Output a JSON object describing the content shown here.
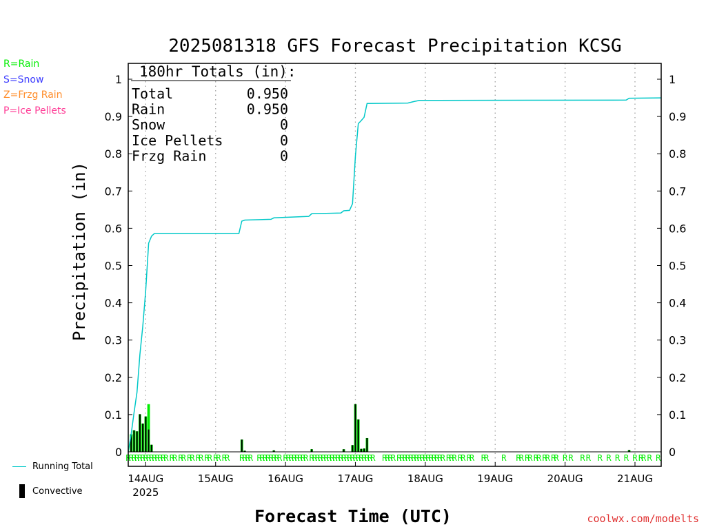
{
  "colors": {
    "rain": "#00ee00",
    "snow": "#3c3cff",
    "frzg_rain": "#ff8c28",
    "ice_pellets": "#ff3c96",
    "running_total": "#00c8c8",
    "convective": "#000000",
    "credit": "#e03030"
  },
  "ptype_legend": [
    {
      "text": "R=Rain",
      "color": "#00ee00"
    },
    {
      "text": "S=Snow",
      "color": "#3c3cff"
    },
    {
      "text": "Z=Frzg Rain",
      "color": "#ff8c28"
    },
    {
      "text": "P=Ice Pellets",
      "color": "#ff3c96"
    }
  ],
  "side_legend": {
    "running_total": "Running Total",
    "convective": "Convective"
  },
  "credit": "coolwx.com/modelts",
  "chart_data": {
    "type": "bar",
    "title": "2025081318 GFS Forecast Precipitation KCSG",
    "xlabel": "Forecast Time (UTC)",
    "ylabel": "Precipitation (in)",
    "ylim": [
      0,
      1.04
    ],
    "yticks": [
      0,
      0.1,
      0.2,
      0.3,
      0.4,
      0.5,
      0.6,
      0.7,
      0.8,
      0.9,
      1
    ],
    "xlim_hours": [
      0,
      183
    ],
    "date_ticks": [
      {
        "hour": 6,
        "label": "14AUG",
        "sub": "2025"
      },
      {
        "hour": 30,
        "label": "15AUG"
      },
      {
        "hour": 54,
        "label": "16AUG"
      },
      {
        "hour": 78,
        "label": "17AUG"
      },
      {
        "hour": 102,
        "label": "18AUG"
      },
      {
        "hour": 126,
        "label": "19AUG"
      },
      {
        "hour": 150,
        "label": "20AUG"
      },
      {
        "hour": 174,
        "label": "21AUG"
      }
    ],
    "grid": "vertical dotted at date ticks",
    "totals_box": {
      "header": "180hr Totals (in):",
      "rows": [
        {
          "label": "Total",
          "value": "0.950"
        },
        {
          "label": "Rain",
          "value": "0.950"
        },
        {
          "label": "Snow",
          "value": "0"
        },
        {
          "label": "Ice Pellets",
          "value": "0"
        },
        {
          "label": "Frzg Rain",
          "value": "0"
        }
      ]
    },
    "bars": [
      {
        "hour": 1,
        "total": 0.047,
        "convective": 0.047
      },
      {
        "hour": 2,
        "total": 0.058,
        "convective": 0.058
      },
      {
        "hour": 3,
        "total": 0.055,
        "convective": 0.055
      },
      {
        "hour": 4,
        "total": 0.101,
        "convective": 0.101
      },
      {
        "hour": 5,
        "total": 0.076,
        "convective": 0.076
      },
      {
        "hour": 6,
        "total": 0.095,
        "convective": 0.095
      },
      {
        "hour": 7,
        "total": 0.128,
        "convective": 0.06
      },
      {
        "hour": 8,
        "total": 0.019,
        "convective": 0.019
      },
      {
        "hour": 39,
        "total": 0.033,
        "convective": 0.033
      },
      {
        "hour": 40,
        "total": 0.003,
        "convective": 0.003
      },
      {
        "hour": 50,
        "total": 0.004,
        "convective": 0.004
      },
      {
        "hour": 63,
        "total": 0.007,
        "convective": 0.007
      },
      {
        "hour": 74,
        "total": 0.007,
        "convective": 0.007
      },
      {
        "hour": 77,
        "total": 0.018,
        "convective": 0.018
      },
      {
        "hour": 78,
        "total": 0.128,
        "convective": 0.128
      },
      {
        "hour": 79,
        "total": 0.087,
        "convective": 0.087
      },
      {
        "hour": 80,
        "total": 0.008,
        "convective": 0.008
      },
      {
        "hour": 81,
        "total": 0.009,
        "convective": 0.009
      },
      {
        "hour": 82,
        "total": 0.037,
        "convective": 0.037
      },
      {
        "hour": 172,
        "total": 0.005,
        "convective": 0.005
      }
    ],
    "running_total": [
      [
        0,
        0
      ],
      [
        1,
        0.047
      ],
      [
        2,
        0.105
      ],
      [
        3,
        0.16
      ],
      [
        4,
        0.261
      ],
      [
        5,
        0.337
      ],
      [
        6,
        0.432
      ],
      [
        7,
        0.56
      ],
      [
        8,
        0.579
      ],
      [
        9,
        0.586
      ],
      [
        38,
        0.586
      ],
      [
        39,
        0.619
      ],
      [
        40,
        0.622
      ],
      [
        49,
        0.624
      ],
      [
        50,
        0.628
      ],
      [
        62,
        0.632
      ],
      [
        63,
        0.639
      ],
      [
        73,
        0.641
      ],
      [
        74,
        0.647
      ],
      [
        76,
        0.648
      ],
      [
        77,
        0.666
      ],
      [
        78,
        0.794
      ],
      [
        79,
        0.881
      ],
      [
        80,
        0.889
      ],
      [
        81,
        0.898
      ],
      [
        82,
        0.935
      ],
      [
        96,
        0.936
      ],
      [
        98,
        0.94
      ],
      [
        100,
        0.943
      ],
      [
        171,
        0.944
      ],
      [
        172,
        0.949
      ],
      [
        183,
        0.95
      ]
    ],
    "ptype_hours": [
      0,
      1,
      2,
      3,
      4,
      5,
      6,
      7,
      8,
      9,
      10,
      11,
      12,
      13,
      15,
      16,
      18,
      19,
      21,
      22,
      24,
      25,
      27,
      28,
      30,
      31,
      33,
      34,
      39,
      40,
      41,
      42,
      45,
      46,
      47,
      48,
      49,
      50,
      51,
      52,
      54,
      55,
      56,
      57,
      58,
      59,
      60,
      61,
      63,
      64,
      65,
      66,
      67,
      68,
      69,
      70,
      71,
      72,
      73,
      74,
      75,
      76,
      77,
      78,
      79,
      80,
      81,
      82,
      83,
      84,
      88,
      89,
      90,
      91,
      93,
      94,
      95,
      96,
      97,
      98,
      99,
      100,
      101,
      102,
      103,
      104,
      105,
      106,
      107,
      108,
      110,
      111,
      112,
      114,
      115,
      117,
      118,
      122,
      123,
      129,
      134,
      135,
      137,
      138,
      140,
      141,
      143,
      144,
      146,
      147,
      150,
      152,
      156,
      158,
      162,
      165,
      168,
      171,
      174,
      176,
      177,
      179,
      182
    ],
    "ptype_code": "R"
  }
}
